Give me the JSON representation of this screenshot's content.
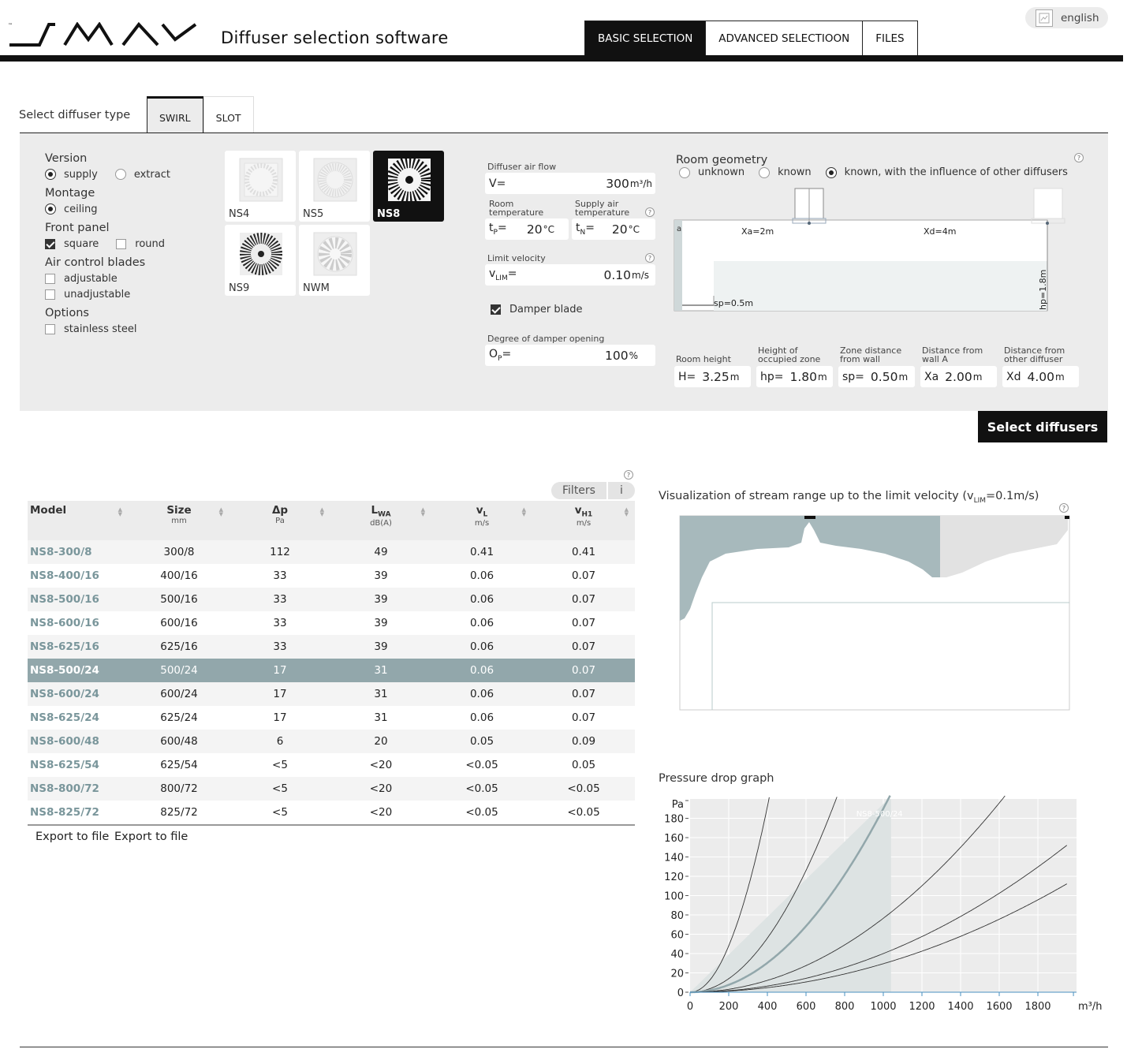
{
  "header": {
    "title": "Diffuser selection software",
    "tabs": [
      {
        "label": "BASIC SELECTION",
        "active": true
      },
      {
        "label": "ADVANCED SELECTIOON",
        "active": false
      },
      {
        "label": "FILES",
        "active": false
      }
    ],
    "language": "english"
  },
  "diffuser_type": {
    "label": "Select diffuser type",
    "tabs": [
      {
        "label": "SWIRL",
        "active": true
      },
      {
        "label": "SLOT",
        "active": false
      }
    ]
  },
  "options": {
    "version": {
      "title": "Version",
      "supply": "supply",
      "extract": "extract",
      "selected": "supply"
    },
    "montage": {
      "title": "Montage",
      "ceiling": "ceiling"
    },
    "front_panel": {
      "title": "Front panel",
      "square": "square",
      "round": "round",
      "selected": "square"
    },
    "blades": {
      "title": "Air control blades",
      "adjustable": "adjustable",
      "unadjustable": "unadjustable"
    },
    "extra": {
      "title": "Options",
      "stainless": "stainless steel"
    }
  },
  "models": [
    {
      "label": "NS4",
      "active": false
    },
    {
      "label": "NS5",
      "active": false
    },
    {
      "label": "NS8",
      "active": true
    },
    {
      "label": "NS9",
      "active": false
    },
    {
      "label": "NWM",
      "active": false
    }
  ],
  "params": {
    "airflow": {
      "label": "Diffuser air flow",
      "prefix": "V=",
      "value": "300",
      "unit": "m³/h"
    },
    "room_temp": {
      "label1": "Room",
      "label2": "temperature",
      "prefix": "t",
      "sub": "P",
      "eq": "=",
      "value": "20",
      "unit": "°C"
    },
    "supply_temp": {
      "label1": "Supply air",
      "label2": "temperature",
      "prefix": "t",
      "sub": "N",
      "eq": "=",
      "value": "20",
      "unit": "°C"
    },
    "limit_velocity": {
      "label": "Limit velocity",
      "prefix": "v",
      "sub": "LIM",
      "eq": "=",
      "value": "0.10",
      "unit": "m/s"
    },
    "damper": {
      "label": "Damper blade",
      "checked": true
    },
    "damper_opening": {
      "label": "Degree of damper opening",
      "prefix": "O",
      "sub": "P",
      "eq": "=",
      "value": "100",
      "unit": "%"
    },
    "help": "?"
  },
  "geometry": {
    "title": "Room geometry",
    "options": [
      "unknown",
      "known",
      "known, with the influence of other diffusers"
    ],
    "selected": 2,
    "labels": {
      "xa": "Xa=2m",
      "xd": "Xd=4m",
      "sp": "sp=0.5m",
      "hp": "hp=1.8m",
      "a": "a"
    },
    "fields": [
      {
        "label1": "Room height",
        "label2": "",
        "prefix": "H=",
        "value": "3.25",
        "unit": "m"
      },
      {
        "label1": "Height of",
        "label2": "occupied zone",
        "prefix": "hp=",
        "value": "1.80",
        "unit": "m"
      },
      {
        "label1": "Zone distance",
        "label2": "from wall",
        "prefix": "sp=",
        "value": "0.50",
        "unit": "m"
      },
      {
        "label1": "Distance from",
        "label2": "wall A",
        "prefix": "Xa",
        "value": "2.00",
        "unit": "m"
      },
      {
        "label1": "Distance from",
        "label2": "other diffuser",
        "prefix": "Xd",
        "value": "4.00",
        "unit": "m"
      }
    ]
  },
  "select_button": "Select diffusers",
  "filters": {
    "label": "Filters",
    "info": "i"
  },
  "table": {
    "columns": [
      {
        "name": "Model",
        "unit": ""
      },
      {
        "name": "Size",
        "unit": "mm"
      },
      {
        "name": "Δp",
        "unit": "Pa"
      },
      {
        "name": "L",
        "sub": "WA",
        "unit": "dB(A)"
      },
      {
        "name": "v",
        "sub": "L",
        "unit": "m/s"
      },
      {
        "name": "v",
        "sub": "H1",
        "unit": "m/s"
      }
    ],
    "rows": [
      {
        "model": "NS8-300/8",
        "size": "300/8",
        "dp": "112",
        "lwa": "49",
        "vl": "0.41",
        "vh": "0.41",
        "selected": false
      },
      {
        "model": "NS8-400/16",
        "size": "400/16",
        "dp": "33",
        "lwa": "39",
        "vl": "0.06",
        "vh": "0.07",
        "selected": false
      },
      {
        "model": "NS8-500/16",
        "size": "500/16",
        "dp": "33",
        "lwa": "39",
        "vl": "0.06",
        "vh": "0.07",
        "selected": false
      },
      {
        "model": "NS8-600/16",
        "size": "600/16",
        "dp": "33",
        "lwa": "39",
        "vl": "0.06",
        "vh": "0.07",
        "selected": false
      },
      {
        "model": "NS8-625/16",
        "size": "625/16",
        "dp": "33",
        "lwa": "39",
        "vl": "0.06",
        "vh": "0.07",
        "selected": false
      },
      {
        "model": "NS8-500/24",
        "size": "500/24",
        "dp": "17",
        "lwa": "31",
        "vl": "0.06",
        "vh": "0.07",
        "selected": true
      },
      {
        "model": "NS8-600/24",
        "size": "600/24",
        "dp": "17",
        "lwa": "31",
        "vl": "0.06",
        "vh": "0.07",
        "selected": false
      },
      {
        "model": "NS8-625/24",
        "size": "625/24",
        "dp": "17",
        "lwa": "31",
        "vl": "0.06",
        "vh": "0.07",
        "selected": false
      },
      {
        "model": "NS8-600/48",
        "size": "600/48",
        "dp": "6",
        "lwa": "20",
        "vl": "0.05",
        "vh": "0.09",
        "selected": false
      },
      {
        "model": "NS8-625/54",
        "size": "625/54",
        "dp": "<5",
        "lwa": "<20",
        "vl": "<0.05",
        "vh": "0.05",
        "selected": false
      },
      {
        "model": "NS8-800/72",
        "size": "800/72",
        "dp": "<5",
        "lwa": "<20",
        "vl": "<0.05",
        "vh": "<0.05",
        "selected": false
      },
      {
        "model": "NS8-825/72",
        "size": "825/72",
        "dp": "<5",
        "lwa": "<20",
        "vl": "<0.05",
        "vh": "<0.05",
        "selected": false
      }
    ],
    "export1": "Export to file",
    "export2": "Export to file"
  },
  "visualization": {
    "title_pre": "Visualization of stream range up to the limit velocity (v",
    "title_sub": "LIM",
    "title_post": "=0.1m/s)"
  },
  "pressure_graph": {
    "title": "Pressure drop graph",
    "selected_label": "NS8-500/24",
    "y_unit": "Pa",
    "x_unit": "m³/h",
    "x_ticks": [
      0,
      200,
      400,
      600,
      800,
      1000,
      1200,
      1400,
      1600,
      1800
    ],
    "y_ticks": [
      0,
      20,
      40,
      60,
      80,
      100,
      120,
      140,
      160,
      180
    ],
    "x_max": 2000,
    "y_max": 200,
    "curves": [
      {
        "k": 0.0012,
        "selected": false
      },
      {
        "k": 0.00035,
        "selected": false
      },
      {
        "k": 0.00019,
        "selected": true
      },
      {
        "k": 7.65e-05,
        "selected": false
      },
      {
        "k": 4e-05,
        "selected": false
      },
      {
        "k": 2.95e-05,
        "selected": false
      }
    ],
    "selected_range_max": 1040
  },
  "colors": {
    "accent": "#92a7ab",
    "dark": "#111111",
    "panel": "#ececec",
    "model_link": "#7a969b"
  }
}
